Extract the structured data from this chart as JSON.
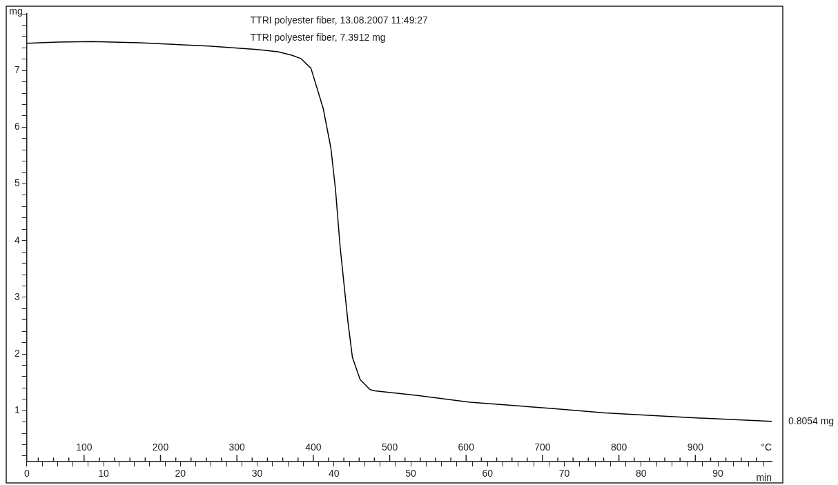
{
  "chart_data": {
    "type": "line",
    "xlabel": "min",
    "x2label": "°C",
    "ylabel": "mg",
    "annotations": [
      "TTRI polyester fiber, 13.08.2007 11:49:27",
      "TTRI polyester fiber, 7.3912 mg",
      {
        "text": "0.8054 mg",
        "x": 97,
        "y": 0.8054
      }
    ],
    "x": [
      0,
      4,
      8.5,
      14.7,
      23.7,
      30,
      32.7,
      34.5,
      35.7,
      37,
      38.6,
      39.6,
      40.2,
      40.8,
      41.3,
      41.8,
      42.4,
      43.4,
      44.7,
      45.3,
      50.7,
      57.7,
      68.3,
      75.3,
      85.9,
      97
    ],
    "series": [
      {
        "color": "#000000",
        "values": [
          7.48,
          7.5,
          7.51,
          7.49,
          7.43,
          7.37,
          7.33,
          7.27,
          7.21,
          7.04,
          6.33,
          5.63,
          4.9,
          3.89,
          3.24,
          2.59,
          1.94,
          1.55,
          1.37,
          1.35,
          1.27,
          1.15,
          1.04,
          0.96,
          0.88,
          0.81
        ]
      }
    ],
    "xlim": [
      0,
      97
    ],
    "ylim": [
      0.1,
      8
    ],
    "x2lim": [
      25,
      1000
    ],
    "xticks": [
      0,
      {
        "value": 2,
        "label": null
      },
      {
        "value": 4,
        "label": null
      },
      {
        "value": 6,
        "label": null
      },
      {
        "value": 8,
        "label": null
      },
      10,
      {
        "value": 12,
        "label": null
      },
      {
        "value": 14,
        "label": null
      },
      {
        "value": 16,
        "label": null
      },
      {
        "value": 18,
        "label": null
      },
      20,
      {
        "value": 22,
        "label": null
      },
      {
        "value": 24,
        "label": null
      },
      {
        "value": 26,
        "label": null
      },
      {
        "value": 28,
        "label": null
      },
      30,
      {
        "value": 32,
        "label": null
      },
      {
        "value": 34,
        "label": null
      },
      {
        "value": 36,
        "label": null
      },
      {
        "value": 38,
        "label": null
      },
      40,
      {
        "value": 42,
        "label": null
      },
      {
        "value": 44,
        "label": null
      },
      {
        "value": 46,
        "label": null
      },
      {
        "value": 48,
        "label": null
      },
      50,
      {
        "value": 52,
        "label": null
      },
      {
        "value": 54,
        "label": null
      },
      {
        "value": 56,
        "label": null
      },
      {
        "value": 58,
        "label": null
      },
      60,
      {
        "value": 62,
        "label": null
      },
      {
        "value": 64,
        "label": null
      },
      {
        "value": 66,
        "label": null
      },
      {
        "value": 68,
        "label": null
      },
      70,
      {
        "value": 72,
        "label": null
      },
      {
        "value": 74,
        "label": null
      },
      {
        "value": 76,
        "label": null
      },
      {
        "value": 78,
        "label": null
      },
      80,
      {
        "value": 82,
        "label": null
      },
      {
        "value": 84,
        "label": null
      },
      {
        "value": 86,
        "label": null
      },
      {
        "value": 88,
        "label": null
      },
      90,
      {
        "value": 92,
        "label": null
      },
      {
        "value": 94,
        "label": null
      },
      {
        "value": 96,
        "label": null
      }
    ],
    "x2ticks": [
      {
        "value": 40,
        "label": null
      },
      {
        "value": 60,
        "label": null
      },
      {
        "value": 80,
        "label": null
      },
      100,
      {
        "value": 120,
        "label": null
      },
      {
        "value": 140,
        "label": null
      },
      {
        "value": 160,
        "label": null
      },
      {
        "value": 180,
        "label": null
      },
      200,
      {
        "value": 220,
        "label": null
      },
      {
        "value": 240,
        "label": null
      },
      {
        "value": 260,
        "label": null
      },
      {
        "value": 280,
        "label": null
      },
      300,
      {
        "value": 320,
        "label": null
      },
      {
        "value": 340,
        "label": null
      },
      {
        "value": 360,
        "label": null
      },
      {
        "value": 380,
        "label": null
      },
      400,
      {
        "value": 420,
        "label": null
      },
      {
        "value": 440,
        "label": null
      },
      {
        "value": 460,
        "label": null
      },
      {
        "value": 480,
        "label": null
      },
      500,
      {
        "value": 520,
        "label": null
      },
      {
        "value": 540,
        "label": null
      },
      {
        "value": 560,
        "label": null
      },
      {
        "value": 580,
        "label": null
      },
      600,
      {
        "value": 620,
        "label": null
      },
      {
        "value": 640,
        "label": null
      },
      {
        "value": 660,
        "label": null
      },
      {
        "value": 680,
        "label": null
      },
      700,
      {
        "value": 720,
        "label": null
      },
      {
        "value": 740,
        "label": null
      },
      {
        "value": 760,
        "label": null
      },
      {
        "value": 780,
        "label": null
      },
      800,
      {
        "value": 820,
        "label": null
      },
      {
        "value": 840,
        "label": null
      },
      {
        "value": 860,
        "label": null
      },
      {
        "value": 880,
        "label": null
      },
      900,
      {
        "value": 920,
        "label": null
      },
      {
        "value": 940,
        "label": null
      },
      {
        "value": 960,
        "label": null
      },
      {
        "value": 980,
        "label": null
      }
    ],
    "yticks": [
      {
        "value": 0.2,
        "label": null
      },
      {
        "value": 0.4,
        "label": null
      },
      {
        "value": 0.6,
        "label": null
      },
      {
        "value": 0.8,
        "label": null
      },
      1,
      {
        "value": 1.2,
        "label": null
      },
      {
        "value": 1.4,
        "label": null
      },
      {
        "value": 1.6,
        "label": null
      },
      {
        "value": 1.8,
        "label": null
      },
      2,
      {
        "value": 2.2,
        "label": null
      },
      {
        "value": 2.4,
        "label": null
      },
      {
        "value": 2.6,
        "label": null
      },
      {
        "value": 2.8,
        "label": null
      },
      3,
      {
        "value": 3.2,
        "label": null
      },
      {
        "value": 3.4,
        "label": null
      },
      {
        "value": 3.6,
        "label": null
      },
      {
        "value": 3.8,
        "label": null
      },
      4,
      {
        "value": 4.2,
        "label": null
      },
      {
        "value": 4.4,
        "label": null
      },
      {
        "value": 4.6,
        "label": null
      },
      {
        "value": 4.8,
        "label": null
      },
      5,
      {
        "value": 5.2,
        "label": null
      },
      {
        "value": 5.4,
        "label": null
      },
      {
        "value": 5.6,
        "label": null
      },
      {
        "value": 5.8,
        "label": null
      },
      6,
      {
        "value": 6.2,
        "label": null
      },
      {
        "value": 6.4,
        "label": null
      },
      {
        "value": 6.6,
        "label": null
      },
      {
        "value": 6.8,
        "label": null
      },
      7,
      {
        "value": 7.2,
        "label": null
      },
      {
        "value": 7.4,
        "label": null
      },
      {
        "value": 7.6,
        "label": null
      },
      {
        "value": 7.8,
        "label": null
      },
      {
        "value": 8,
        "label": null
      }
    ],
    "grid": false,
    "legend": false,
    "marker": "none",
    "line_style": "solid"
  }
}
